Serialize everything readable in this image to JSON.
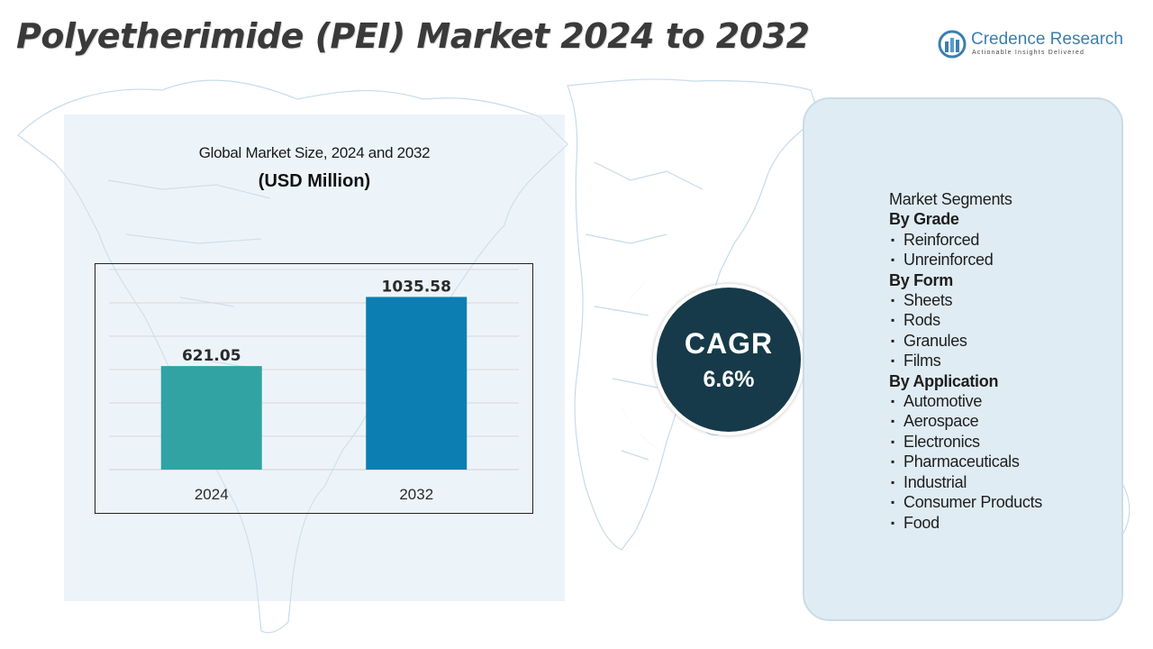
{
  "header": {
    "title": "Polyetherimide (PEI) Market 2024 to 2032"
  },
  "logo": {
    "name": "Credence Research",
    "tagline": "Actionable Insights Delivered"
  },
  "chart_heading": {
    "title": "Global Market Size, 2024 and 2032",
    "subtitle": "(USD Million)"
  },
  "chart_data": {
    "type": "bar",
    "categories": [
      "2024",
      "2032"
    ],
    "values": [
      621.05,
      1035.58
    ],
    "value_labels": [
      "621.05",
      "1035.58"
    ],
    "bar_colors": [
      "#32a3a3",
      "#0c7eb1"
    ],
    "title": "Global Market Size, 2024 and 2032",
    "ylabel": "(USD Million)",
    "ylim": [
      0,
      1200
    ],
    "grid": true,
    "legend": "none"
  },
  "cagr": {
    "label": "CAGR",
    "value": "6.6%"
  },
  "segments": {
    "heading": "Market Segments",
    "groups": [
      {
        "name": "By Grade",
        "items": [
          "Reinforced",
          "Unreinforced"
        ]
      },
      {
        "name": "By Form",
        "items": [
          "Sheets",
          "Rods",
          "Granules",
          "Films"
        ]
      },
      {
        "name": "By Application",
        "items": [
          "Automotive",
          "Aerospace",
          "Electronics",
          "Pharmaceuticals",
          "Industrial",
          "Consumer Products",
          "Food"
        ]
      }
    ],
    "bullet": "▪"
  },
  "colors": {
    "title_text": "#3a3a3a",
    "brand_blue": "#3b7fb0",
    "cagr_circle": "#163a49",
    "panel_bg": "#e0ecf3"
  }
}
